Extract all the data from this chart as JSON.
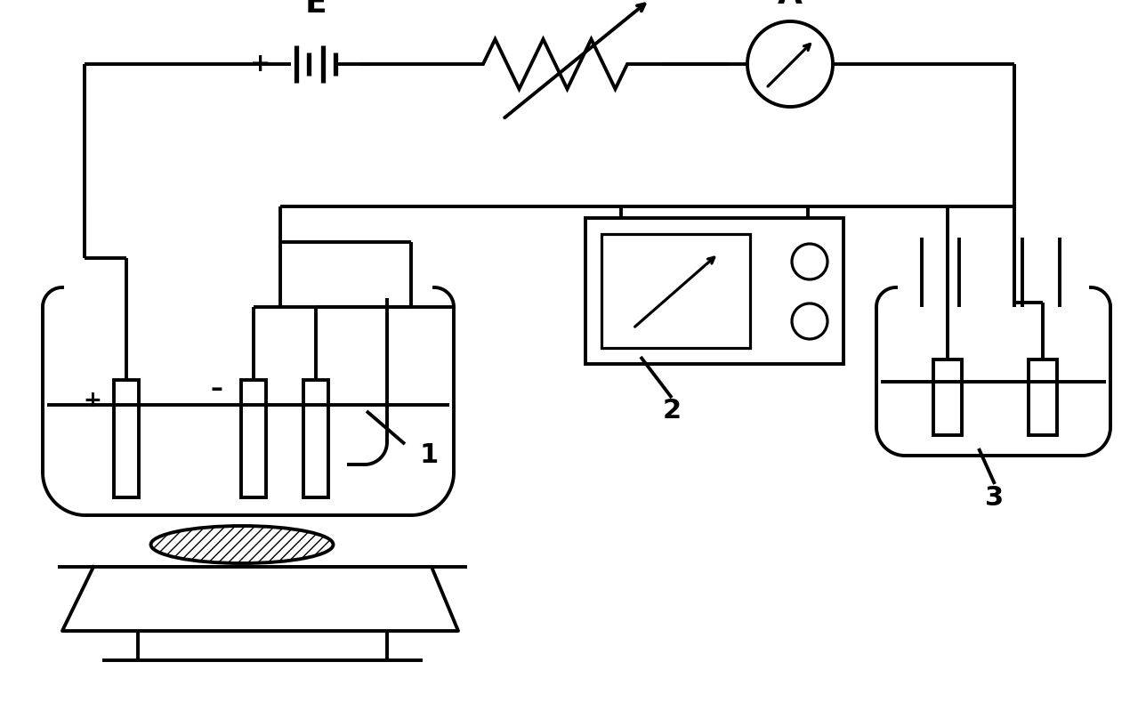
{
  "bg_color": "#ffffff",
  "line_color": "#000000",
  "line_width": 2.8,
  "fig_width": 12.88,
  "fig_height": 8.17
}
